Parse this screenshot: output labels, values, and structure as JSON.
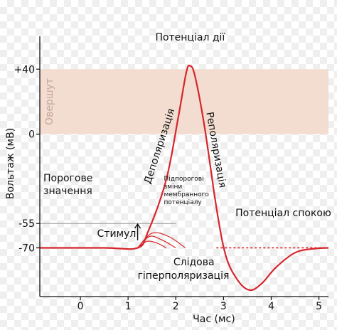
{
  "chart_data": {
    "type": "line",
    "xlabel": "Час (мс)",
    "ylabel": "Вольтаж (мВ)",
    "xlim": [
      -0.85,
      5.2
    ],
    "ylim": [
      -100,
      55
    ],
    "x_ticks": [
      0,
      1,
      2,
      3,
      4,
      5
    ],
    "y_ticks": [
      {
        "value": 40,
        "label": "+40"
      },
      {
        "value": 0,
        "label": "0"
      },
      {
        "value": -55,
        "label": "-55"
      },
      {
        "value": -70,
        "label": "-70"
      }
    ],
    "overshoot_band": {
      "from": 0,
      "to": 40,
      "label": "Овершут",
      "color": "#f3ddd0"
    },
    "series": [
      {
        "values": [
          {
            "x": -0.85,
            "y": -70
          },
          {
            "x": 0.5,
            "y": -70
          },
          {
            "x": 1.2,
            "y": -70
          },
          {
            "x": 1.42,
            "y": -60
          },
          {
            "x": 1.8,
            "y": -28
          },
          {
            "x": 2.05,
            "y": 10
          },
          {
            "x": 2.22,
            "y": 38
          },
          {
            "x": 2.3,
            "y": 42
          },
          {
            "x": 2.4,
            "y": 36
          },
          {
            "x": 2.6,
            "y": 5
          },
          {
            "x": 2.85,
            "y": -45
          },
          {
            "x": 3.05,
            "y": -75
          },
          {
            "x": 3.3,
            "y": -90
          },
          {
            "x": 3.55,
            "y": -96
          },
          {
            "x": 3.8,
            "y": -92
          },
          {
            "x": 4.1,
            "y": -82
          },
          {
            "x": 4.5,
            "y": -73
          },
          {
            "x": 4.9,
            "y": -70.5
          },
          {
            "x": 5.2,
            "y": -70
          }
        ]
      }
    ],
    "subthreshold_curves": [
      {
        "values": [
          {
            "x": 1.2,
            "y": -70
          },
          {
            "x": 1.4,
            "y": -66
          },
          {
            "x": 1.6,
            "y": -67
          },
          {
            "x": 1.8,
            "y": -70
          }
        ]
      },
      {
        "values": [
          {
            "x": 1.2,
            "y": -70
          },
          {
            "x": 1.45,
            "y": -63
          },
          {
            "x": 1.7,
            "y": -65
          },
          {
            "x": 2.0,
            "y": -70
          }
        ]
      },
      {
        "values": [
          {
            "x": 1.2,
            "y": -70
          },
          {
            "x": 1.5,
            "y": -61
          },
          {
            "x": 1.85,
            "y": -63
          },
          {
            "x": 2.2,
            "y": -70
          }
        ]
      }
    ],
    "threshold_line": {
      "y": -55
    },
    "resting_dotted_line": {
      "y": -70,
      "from_x": 2.85,
      "to_x": 5.2
    },
    "annotations": {
      "action_potential": "Потенціал дії",
      "depolarization": "Деполяризація",
      "repolarization": "Реполяризація",
      "threshold_line1": "Порогове",
      "threshold_line2": "значення",
      "subthreshold_line1": "Підпорогові",
      "subthreshold_line2": "зміни",
      "subthreshold_line3": "мембранного",
      "subthreshold_line4": "потенціалу",
      "resting_potential": "Потенціал спокою",
      "stimulus": "Стимул",
      "afterhyper_line1": "Слідова",
      "afterhyper_line2": "гіперполяризація"
    },
    "colors": {
      "curve": "#d6262b",
      "axis": "#111111",
      "threshold": "#999999",
      "band": "#f3ddd0"
    },
    "grid": false
  }
}
